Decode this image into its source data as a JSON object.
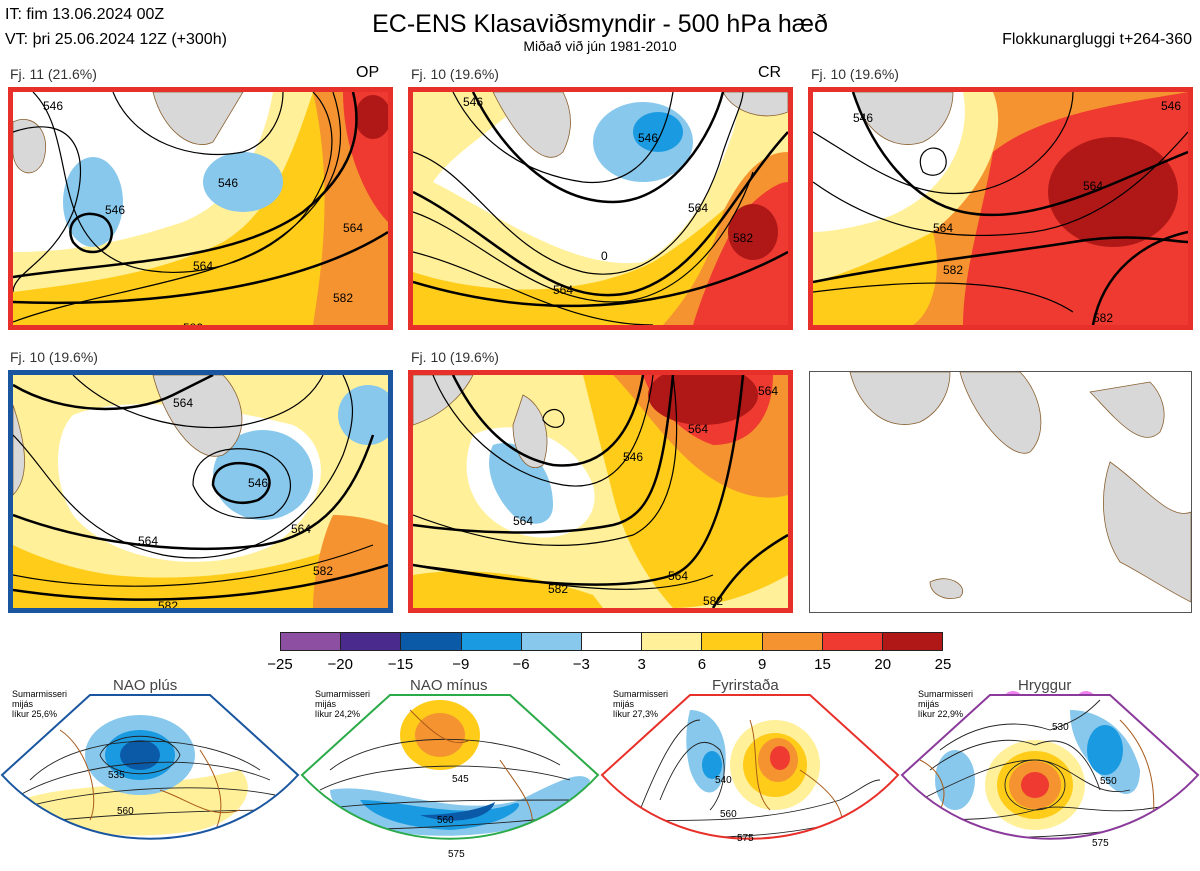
{
  "header": {
    "init_time": "IT: fim 13.06.2024 00Z",
    "valid_time": "VT: þri 25.06.2024 12Z  (+300h)",
    "title": "EC-ENS Klasaviðsmyndir - 500 hPa hæð",
    "subtitle": "Miðað við jún 1981-2010",
    "window": "Flokkunargluggi t+264-360"
  },
  "panels": [
    {
      "label": "Fj. 11 (21.6%)",
      "tag": "OP",
      "frame_color": "#e8302a",
      "contours": [
        "546",
        "546",
        "564",
        "564",
        "582",
        "582",
        "546"
      ]
    },
    {
      "label": "Fj. 10 (19.6%)",
      "tag": "CR",
      "frame_color": "#e8302a",
      "contours": [
        "546",
        "546",
        "564",
        "564",
        "582",
        "582",
        "0"
      ]
    },
    {
      "label": "Fj. 10 (19.6%)",
      "tag": "",
      "frame_color": "#e8302a",
      "contours": [
        "546",
        "564",
        "564",
        "582",
        "582",
        "546"
      ]
    },
    {
      "label": "Fj. 10 (19.6%)",
      "tag": "",
      "frame_color": "#1a56a0",
      "contours": [
        "546",
        "564",
        "564",
        "582",
        "582",
        "564"
      ]
    },
    {
      "label": "Fj. 10 (19.6%)",
      "tag": "",
      "frame_color": "#e8302a",
      "contours": [
        "546",
        "564",
        "564",
        "582",
        "582",
        "564",
        "564"
      ]
    }
  ],
  "colorbar": {
    "colors": [
      "#8c4fa1",
      "#4a2a8c",
      "#0a5aa8",
      "#1a9ae0",
      "#88c8ec",
      "#ffffff",
      "#fff099",
      "#ffcc1a",
      "#f59330",
      "#ee3a30",
      "#b01818"
    ],
    "ticks": [
      "−25",
      "−20",
      "−15",
      "−9",
      "−6",
      "−3",
      "3",
      "6",
      "9",
      "15",
      "20",
      "25"
    ]
  },
  "regimes": [
    {
      "title": "NAO plús",
      "note": [
        "Sumarmisseri",
        "mijás",
        "líkur 25,6%"
      ],
      "border": "#1a56a0",
      "dot": "#0a5aa8",
      "contours": [
        "535",
        "560"
      ]
    },
    {
      "title": "NAO mínus",
      "note": [
        "Sumarmisseri",
        "mijás",
        "líkur 24,2%"
      ],
      "border": "#2aaa48",
      "dot": "#2aaa48",
      "contours": [
        "545",
        "560",
        "575"
      ]
    },
    {
      "title": "Fyrirstaða",
      "note": [
        "Sumarmisseri",
        "mijás",
        "líkur 27,3%"
      ],
      "border": "#e8302a",
      "dot": "#e8302a",
      "contours": [
        "540",
        "560",
        "575"
      ]
    },
    {
      "title": "Hryggur",
      "note": [
        "Sumarmisseri",
        "mijás",
        "líkur 22,9%"
      ],
      "border": "#8a3a9a",
      "dot": "#ee82ee",
      "contours": [
        "530",
        "550",
        "575"
      ]
    }
  ]
}
